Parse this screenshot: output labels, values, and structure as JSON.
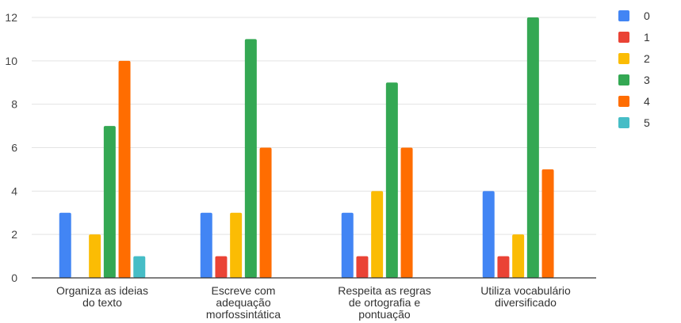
{
  "chart_data": {
    "type": "bar",
    "categories": [
      [
        "Organiza as ideias",
        "do texto"
      ],
      [
        "Escreve com",
        "adequação",
        "morfossintática"
      ],
      [
        "Respeita as regras",
        "de ortografia e",
        "pontuação"
      ],
      [
        "Utiliza vocabulário",
        "diversificado"
      ]
    ],
    "series": [
      {
        "name": "0",
        "color": "#4285F4",
        "values": [
          3,
          3,
          3,
          4
        ]
      },
      {
        "name": "1",
        "color": "#EA4335",
        "values": [
          0,
          1,
          1,
          1
        ]
      },
      {
        "name": "2",
        "color": "#FBBC04",
        "values": [
          2,
          3,
          4,
          2
        ]
      },
      {
        "name": "3",
        "color": "#34A853",
        "values": [
          7,
          11,
          9,
          12
        ]
      },
      {
        "name": "4",
        "color": "#FF6D01",
        "values": [
          10,
          6,
          6,
          5
        ]
      },
      {
        "name": "5",
        "color": "#46BDC6",
        "values": [
          1,
          0,
          0,
          0
        ]
      }
    ],
    "ylim": [
      0,
      12
    ],
    "yticks": [
      0,
      2,
      4,
      6,
      8,
      10,
      12
    ],
    "grid": true,
    "legend": "top-right",
    "title": "",
    "xlabel": "",
    "ylabel": ""
  }
}
